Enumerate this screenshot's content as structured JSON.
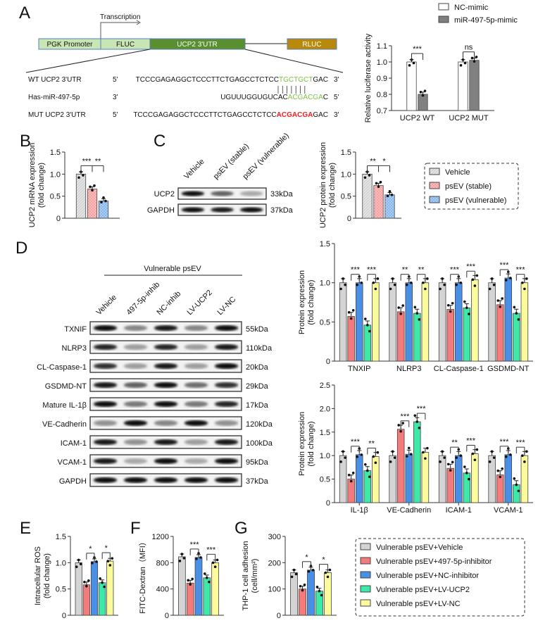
{
  "panels": [
    "A",
    "B",
    "C",
    "D",
    "E",
    "F",
    "G"
  ],
  "construct": {
    "transcription": "Transcription",
    "boxes": [
      "PGK Promoter",
      "FLUC",
      "UCP2 3'UTR",
      "RLUC"
    ],
    "colors": {
      "light": "#c8e6b4",
      "utr": "#5a8f2f",
      "rluc": "#b8890a",
      "border": "#5b7fbf"
    },
    "sequences": [
      {
        "label": "WT UCP2 3'UTR",
        "left": "5'",
        "right": "3'",
        "pre": "TCCCGAGAGGCTCCCTTCTGAGCCTCTCC",
        "hl": "TGCTGCT",
        "post": "GAC",
        "hl_color": "#7dc242"
      },
      {
        "label": "Has-miR-497-5p",
        "left": "3'",
        "right": "5'",
        "pre": "UGUUUGGUGUCAC",
        "hl": "ACGACGA",
        "post": "C",
        "hl_color": "#7dc242"
      },
      {
        "label": "MUT UCP2 3'UTR",
        "left": "5'",
        "right": "3'",
        "pre": "TCCCGAGAGGCTCCCTTCTGAGCCTCTCC",
        "hl": "ACGACGA",
        "post": "GAC",
        "hl_color": "#ff1a1a"
      }
    ]
  },
  "blot_c": {
    "lanes": [
      "Vehicle",
      "psEV (stable)",
      "psEV (vulnerable)"
    ],
    "rows": [
      {
        "name": "UCP2",
        "kda": "33kDa",
        "band_intensity": [
          0.95,
          0.6,
          0.3
        ]
      },
      {
        "name": "GAPDH",
        "kda": "37kDa",
        "band_intensity": [
          0.95,
          0.9,
          0.95
        ]
      }
    ]
  },
  "legend_bc": [
    "Vehicle",
    "psEV (stable)",
    "psEV (vulnerable)"
  ],
  "blot_d": {
    "group_label": "Vulnerable psEV",
    "lanes": [
      "Vehicle",
      "497-5p-inhib",
      "NC-inhib",
      "LV-UCP2",
      "LV-NC"
    ],
    "rows": [
      {
        "name": "TXNIF",
        "kda": "55kDa",
        "band_intensity": [
          0.95,
          0.45,
          0.9,
          0.45,
          0.95
        ]
      },
      {
        "name": "NLRP3",
        "kda": "110kDa",
        "band_intensity": [
          0.85,
          0.35,
          0.85,
          0.35,
          0.9
        ]
      },
      {
        "name": "CL-Caspase-1",
        "kda": "20kDa",
        "band_intensity": [
          0.8,
          0.35,
          0.9,
          0.35,
          0.95
        ]
      },
      {
        "name": "GSDMD-NT",
        "kda": "29kDa",
        "band_intensity": [
          0.9,
          0.6,
          0.95,
          0.55,
          0.8
        ]
      },
      {
        "name": "Mature IL-1β",
        "kda": "17kDa",
        "band_intensity": [
          0.95,
          0.5,
          0.95,
          0.5,
          0.85
        ]
      },
      {
        "name": "VE-Cadherin",
        "kda": "120kDa",
        "band_intensity": [
          0.4,
          0.95,
          0.45,
          0.95,
          0.4
        ]
      },
      {
        "name": "ICAM-1",
        "kda": "100kDa",
        "band_intensity": [
          0.9,
          0.4,
          0.9,
          0.35,
          0.9
        ]
      },
      {
        "name": "VCAM-1",
        "kda": "95kDa",
        "band_intensity": [
          0.9,
          0.3,
          0.95,
          0.3,
          0.95
        ]
      },
      {
        "name": "GAPDH",
        "kda": "37kDa",
        "band_intensity": [
          0.95,
          0.95,
          0.95,
          0.95,
          0.95
        ]
      }
    ]
  },
  "legend_efg": [
    "Vulnerable psEV+Vehicle",
    "Vulnerable psEV+497-5p-inhibitor",
    "Vulnerable psEV+NC-inhibitor",
    "Vulnerable psEV+LV-UCP2",
    "Vulnerable psEV+LV-NC"
  ],
  "colors5": [
    "#d4d4d4",
    "#f47b7b",
    "#4a8fe6",
    "#3ee8a6",
    "#fbfb9c"
  ],
  "colors3": [
    "#e4e4e4",
    "#f8bcbc",
    "#a9cdf4"
  ],
  "chart_data": [
    {
      "id": "A",
      "type": "bar",
      "ylabel": [
        "Relative luciferase activity"
      ],
      "ylim": [
        0.7,
        1.1
      ],
      "yticks": [
        0.7,
        0.8,
        0.9,
        1.0,
        1.1
      ],
      "ytick_labels": [
        "0.7",
        "0.8",
        "0.9",
        "1.0",
        "1.1"
      ],
      "categories": [
        "UCP2 WT",
        "UCP2 MUT"
      ],
      "series": [
        {
          "name": "NC-mimic",
          "color": "#ffffff",
          "values": [
            1.0,
            1.0
          ]
        },
        {
          "name": "miR-497-5p-mimic",
          "color": "#808080",
          "values": [
            0.8,
            1.01
          ]
        }
      ],
      "significance": [
        {
          "group": 0,
          "ticks": [
            0,
            1
          ],
          "labels": [
            "***"
          ]
        },
        {
          "group": 1,
          "ticks": [
            0,
            1
          ],
          "labels": [
            "ns"
          ]
        }
      ]
    },
    {
      "id": "B",
      "type": "bar",
      "ylabel": [
        "UCP2 mRNA expression",
        "(fold change)"
      ],
      "ylim": [
        0,
        1.5
      ],
      "yticks": [
        0,
        0.5,
        1.0,
        1.5
      ],
      "ytick_labels": [
        "0",
        "0.5",
        "1.0",
        "1.5"
      ],
      "categories": [
        ""
      ],
      "series": [
        {
          "name": "Vehicle",
          "values": [
            1.0
          ]
        },
        {
          "name": "psEV (stable)",
          "values": [
            0.66
          ]
        },
        {
          "name": "psEV (vulnerable)",
          "values": [
            0.39
          ]
        }
      ],
      "significance": [
        {
          "group": 0,
          "ticks": [
            0,
            1,
            2
          ],
          "labels": [
            "***",
            "**"
          ]
        }
      ]
    },
    {
      "id": "C",
      "type": "bar",
      "ylabel": [
        "UCP2 protein expression",
        "(fold change)"
      ],
      "ylim": [
        0,
        1.5
      ],
      "yticks": [
        0,
        0.5,
        1.0,
        1.5
      ],
      "ytick_labels": [
        "0",
        "0.5",
        "1.0",
        "1.5"
      ],
      "categories": [
        ""
      ],
      "series": [
        {
          "name": "Vehicle",
          "values": [
            1.0
          ]
        },
        {
          "name": "psEV (stable)",
          "values": [
            0.74
          ]
        },
        {
          "name": "psEV (vulnerable)",
          "values": [
            0.53
          ]
        }
      ],
      "significance": [
        {
          "group": 0,
          "ticks": [
            0,
            1,
            2
          ],
          "labels": [
            "**",
            "*"
          ]
        }
      ]
    },
    {
      "id": "D1",
      "type": "bar",
      "ylabel": [
        "Protein expression",
        "(fold change)"
      ],
      "ylim": [
        0,
        1.5
      ],
      "yticks": [
        0,
        0.5,
        1.0,
        1.5
      ],
      "ytick_labels": [
        "0",
        "0.5",
        "1.0",
        "1.5"
      ],
      "categories": [
        "TNXIP",
        "NLRP3",
        "CL-Caspase-1",
        "GSDMD-NT"
      ],
      "series": [
        {
          "name": "Vehicle",
          "values": [
            1.0,
            1.0,
            1.0,
            1.0
          ]
        },
        {
          "name": "497-5p-inhibitor",
          "values": [
            0.57,
            0.63,
            0.66,
            0.72
          ]
        },
        {
          "name": "NC-inhibitor",
          "values": [
            1.0,
            1.0,
            1.0,
            1.06
          ]
        },
        {
          "name": "LV-UCP2",
          "values": [
            0.46,
            0.61,
            0.68,
            0.61
          ]
        },
        {
          "name": "LV-NC",
          "values": [
            1.0,
            1.0,
            1.04,
            1.0
          ]
        }
      ],
      "significance": [
        {
          "group": 0,
          "ticks": [
            1,
            2
          ],
          "labels": [
            "***"
          ]
        },
        {
          "group": 0,
          "ticks": [
            3,
            4
          ],
          "labels": [
            "***"
          ]
        },
        {
          "group": 1,
          "ticks": [
            1,
            2
          ],
          "labels": [
            "**"
          ]
        },
        {
          "group": 1,
          "ticks": [
            3,
            4
          ],
          "labels": [
            "**"
          ]
        },
        {
          "group": 2,
          "ticks": [
            1,
            2
          ],
          "labels": [
            "***"
          ]
        },
        {
          "group": 2,
          "ticks": [
            3,
            4
          ],
          "labels": [
            "***"
          ]
        },
        {
          "group": 3,
          "ticks": [
            1,
            2
          ],
          "labels": [
            "***"
          ]
        },
        {
          "group": 3,
          "ticks": [
            3,
            4
          ],
          "labels": [
            "***"
          ]
        }
      ]
    },
    {
      "id": "D2",
      "type": "bar",
      "ylabel": [
        "Protein expression",
        "(fold change)"
      ],
      "ylim": [
        0,
        2.5
      ],
      "yticks": [
        0,
        0.5,
        1.0,
        1.5,
        2.0,
        2.5
      ],
      "ytick_labels": [
        "0",
        "0.5",
        "1.0",
        "1.5",
        "2.0",
        "2.5"
      ],
      "categories": [
        "IL-1β",
        "VE-Cadherin",
        "ICAM-1",
        "VCAM-1"
      ],
      "series": [
        {
          "name": "Vehicle",
          "values": [
            1.0,
            1.0,
            1.0,
            1.0
          ]
        },
        {
          "name": "497-5p-inhibitor",
          "values": [
            0.5,
            1.56,
            0.73,
            0.59
          ]
        },
        {
          "name": "NC-inhibitor",
          "values": [
            1.02,
            1.03,
            1.0,
            1.02
          ]
        },
        {
          "name": "LV-UCP2",
          "values": [
            0.68,
            1.72,
            0.63,
            0.38
          ]
        },
        {
          "name": "LV-NC",
          "values": [
            0.98,
            1.07,
            1.04,
            1.0
          ]
        }
      ],
      "significance": [
        {
          "group": 0,
          "ticks": [
            1,
            2
          ],
          "labels": [
            "***"
          ]
        },
        {
          "group": 0,
          "ticks": [
            3,
            4
          ],
          "labels": [
            "**"
          ]
        },
        {
          "group": 1,
          "ticks": [
            1,
            2
          ],
          "labels": [
            "***"
          ]
        },
        {
          "group": 1,
          "ticks": [
            3,
            4
          ],
          "labels": [
            "***"
          ]
        },
        {
          "group": 2,
          "ticks": [
            1,
            2
          ],
          "labels": [
            "**"
          ]
        },
        {
          "group": 2,
          "ticks": [
            3,
            4
          ],
          "labels": [
            "***"
          ]
        },
        {
          "group": 3,
          "ticks": [
            1,
            2
          ],
          "labels": [
            "***"
          ]
        },
        {
          "group": 3,
          "ticks": [
            3,
            4
          ],
          "labels": [
            "***"
          ]
        }
      ]
    },
    {
      "id": "E",
      "type": "bar",
      "ylabel": [
        "Intracellular ROS",
        "(fold change)"
      ],
      "ylim": [
        0,
        1.5
      ],
      "yticks": [
        0,
        0.5,
        1.0,
        1.5
      ],
      "ytick_labels": [
        "0",
        "0.5",
        "1.0",
        "1.5"
      ],
      "categories": [
        ""
      ],
      "series": [
        {
          "name": "Vehicle",
          "values": [
            1.0
          ]
        },
        {
          "name": "497-5p-inhibitor",
          "values": [
            0.58
          ]
        },
        {
          "name": "NC-inhibitor",
          "values": [
            1.02
          ]
        },
        {
          "name": "LV-UCP2",
          "values": [
            0.62
          ]
        },
        {
          "name": "LV-NC",
          "values": [
            1.03
          ]
        }
      ],
      "significance": [
        {
          "group": 0,
          "ticks": [
            1,
            2
          ],
          "labels": [
            "*"
          ]
        },
        {
          "group": 0,
          "ticks": [
            3,
            4
          ],
          "labels": [
            "*"
          ]
        }
      ]
    },
    {
      "id": "F",
      "type": "bar",
      "ylabel": [
        "FITC-Dextran（MFI）"
      ],
      "ylim": [
        0,
        1200
      ],
      "yticks": [
        0,
        400,
        800,
        1200
      ],
      "ytick_labels": [
        "0",
        "400",
        "800",
        "1200"
      ],
      "categories": [
        ""
      ],
      "series": [
        {
          "name": "Vehicle",
          "values": [
            890
          ]
        },
        {
          "name": "497-5p-inhibitor",
          "values": [
            490
          ]
        },
        {
          "name": "NC-inhibitor",
          "values": [
            880
          ]
        },
        {
          "name": "LV-UCP2",
          "values": [
            570
          ]
        },
        {
          "name": "LV-NC",
          "values": [
            800
          ]
        }
      ],
      "significance": [
        {
          "group": 0,
          "ticks": [
            1,
            2
          ],
          "labels": [
            "***"
          ]
        },
        {
          "group": 0,
          "ticks": [
            3,
            4
          ],
          "labels": [
            "***"
          ]
        }
      ]
    },
    {
      "id": "G",
      "type": "bar",
      "ylabel": [
        "THP-1 cell adhesion",
        "(cell/mm²)"
      ],
      "ylim": [
        0,
        300
      ],
      "yticks": [
        0,
        100,
        200,
        300
      ],
      "ytick_labels": [
        "0",
        "100",
        "200",
        "300"
      ],
      "categories": [
        ""
      ],
      "series": [
        {
          "name": "Vehicle",
          "values": [
            162
          ]
        },
        {
          "name": "497-5p-inhibitor",
          "values": [
            100
          ]
        },
        {
          "name": "NC-inhibitor",
          "values": [
            172
          ]
        },
        {
          "name": "LV-UCP2",
          "values": [
            92
          ]
        },
        {
          "name": "LV-NC",
          "values": [
            162
          ]
        }
      ],
      "significance": [
        {
          "group": 0,
          "ticks": [
            1,
            2
          ],
          "labels": [
            "*"
          ]
        },
        {
          "group": 0,
          "ticks": [
            3,
            4
          ],
          "labels": [
            "*"
          ]
        }
      ]
    }
  ]
}
